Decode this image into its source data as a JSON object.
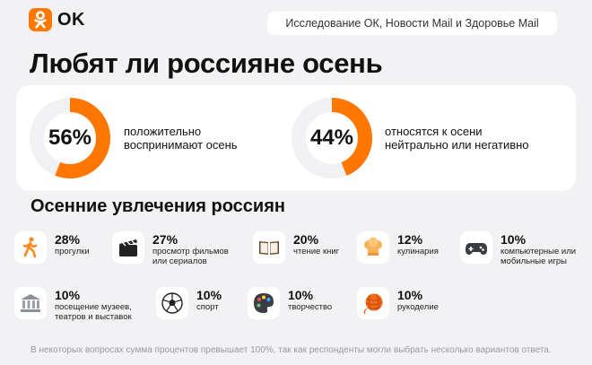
{
  "brand": {
    "logo_text": "OK",
    "accent": "#ff7700"
  },
  "source": "Исследование ОК, Новости Mail и Здоровье Mail",
  "title": "Любят ли россияне осень",
  "chart_data": [
    {
      "type": "pie",
      "value": 56,
      "value_label": "56%",
      "label_lines": [
        "положительно",
        "воспринимают осень"
      ],
      "colors": {
        "fill": "#ff7700",
        "rest": "#f1f1f3"
      }
    },
    {
      "type": "pie",
      "value": 44,
      "value_label": "44%",
      "label_lines": [
        "относятся к осени",
        "нейтрально или негативно"
      ],
      "colors": {
        "fill": "#ff7700",
        "rest": "#f1f1f3"
      }
    },
    {
      "type": "table",
      "title": "Осенние увлечения россиян",
      "items": [
        {
          "icon": "walking-person-icon",
          "value": 28,
          "value_label": "28%",
          "label_lines": [
            "прогулки"
          ]
        },
        {
          "icon": "clapperboard-icon",
          "value": 27,
          "value_label": "27%",
          "label_lines": [
            "просмотр фильмов",
            "или сериалов"
          ]
        },
        {
          "icon": "open-book-icon",
          "value": 20,
          "value_label": "20%",
          "label_lines": [
            "чтение книг"
          ]
        },
        {
          "icon": "chef-hat-icon",
          "value": 12,
          "value_label": "12%",
          "label_lines": [
            "кулинария"
          ]
        },
        {
          "icon": "gamepad-icon",
          "value": 10,
          "value_label": "10%",
          "label_lines": [
            "компьютерные или",
            "мобильные игры"
          ]
        },
        {
          "icon": "museum-icon",
          "value": 10,
          "value_label": "10%",
          "label_lines": [
            "посещение музеев,",
            "театров и выставок"
          ]
        },
        {
          "icon": "soccer-ball-icon",
          "value": 10,
          "value_label": "10%",
          "label_lines": [
            "спорт"
          ]
        },
        {
          "icon": "palette-icon",
          "value": 10,
          "value_label": "10%",
          "label_lines": [
            "творчество"
          ]
        },
        {
          "icon": "yarn-ball-icon",
          "value": 10,
          "value_label": "10%",
          "label_lines": [
            "рукоделие"
          ]
        }
      ]
    }
  ],
  "footnote": "В некоторых вопросах сумма процентов превышает 100%, так как респонденты могли выбрать несколько вариантов ответа."
}
